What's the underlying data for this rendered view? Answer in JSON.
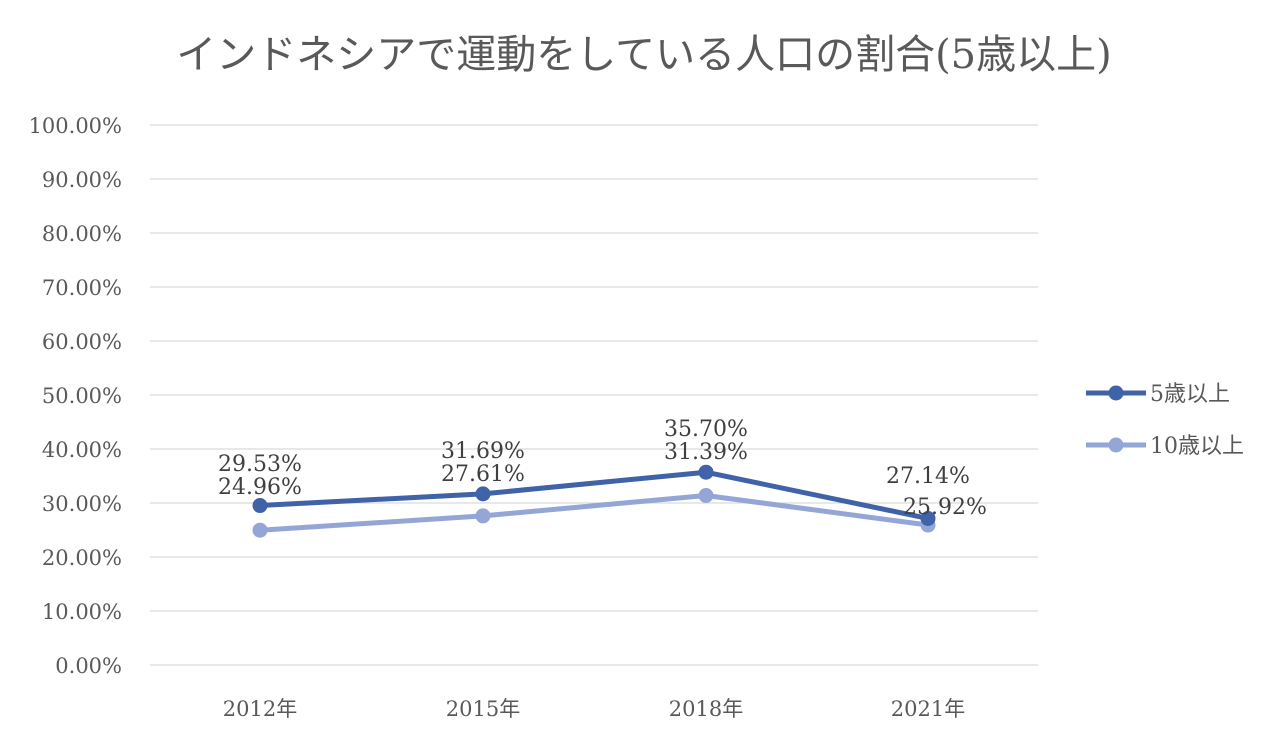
{
  "chart_data": {
    "type": "line",
    "title": "インドネシアで運動をしている人口の割合(5歳以上)",
    "categories": [
      "2012年",
      "2015年",
      "2018年",
      "2021年"
    ],
    "y_ticks": [
      "0.00%",
      "10.00%",
      "20.00%",
      "30.00%",
      "40.00%",
      "50.00%",
      "60.00%",
      "70.00%",
      "80.00%",
      "90.00%",
      "100.00%"
    ],
    "ylim": [
      0,
      100
    ],
    "grid": true,
    "legend_position": "right",
    "series": [
      {
        "name": "5歳以上",
        "values": [
          29.53,
          31.69,
          35.7,
          27.14
        ],
        "labels": [
          "29.53%",
          "31.69%",
          "35.70%",
          "27.14%"
        ],
        "color": "#3f62a8"
      },
      {
        "name": "10歳以上",
        "values": [
          24.96,
          27.61,
          31.39,
          25.92
        ],
        "labels": [
          "24.96%",
          "27.61%",
          "31.39%",
          "25.92%"
        ],
        "color": "#94a6d6"
      }
    ]
  }
}
